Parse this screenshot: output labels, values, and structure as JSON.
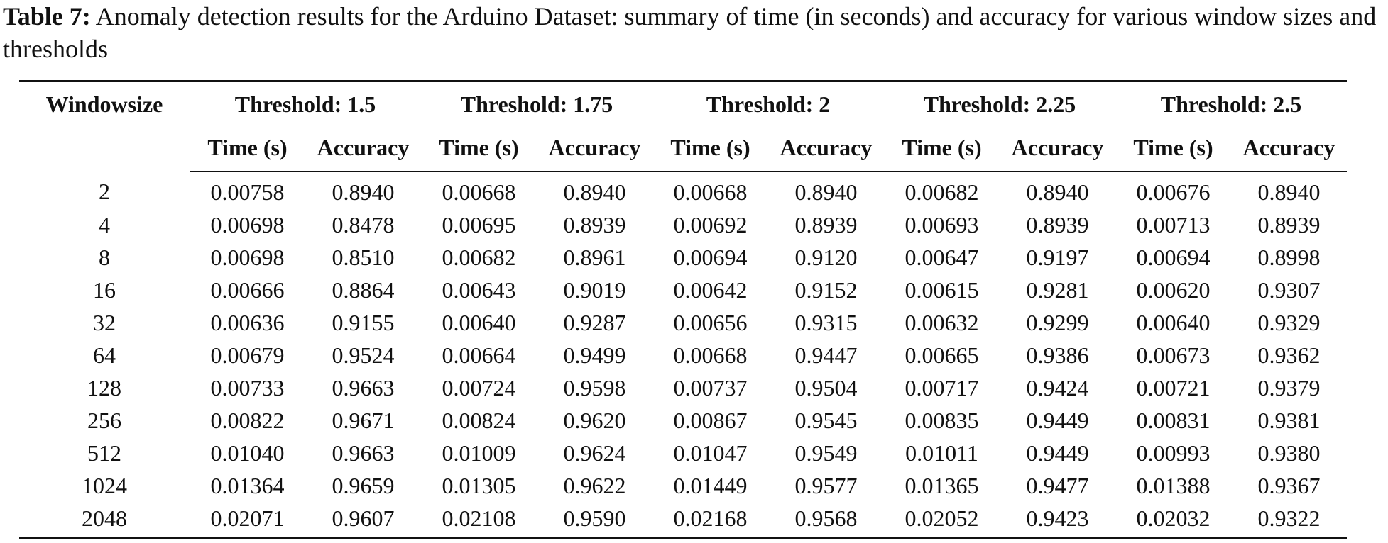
{
  "caption": {
    "label": "Table 7:",
    "text": "Anomaly detection results for the Arduino Dataset: summary of time (in seconds) and accuracy for various window sizes and thresholds"
  },
  "table": {
    "row_header": "Windowsize",
    "groups": [
      {
        "label": "Threshold: 1.5",
        "columns": [
          "Time (s)",
          "Accuracy"
        ]
      },
      {
        "label": "Threshold: 1.75",
        "columns": [
          "Time (s)",
          "Accuracy"
        ]
      },
      {
        "label": "Threshold: 2",
        "columns": [
          "Time (s)",
          "Accuracy"
        ]
      },
      {
        "label": "Threshold: 2.25",
        "columns": [
          "Time (s)",
          "Accuracy"
        ]
      },
      {
        "label": "Threshold: 2.5",
        "columns": [
          "Time (s)",
          "Accuracy"
        ]
      }
    ],
    "rows": [
      [
        "2",
        "0.00758",
        "0.8940",
        "0.00668",
        "0.8940",
        "0.00668",
        "0.8940",
        "0.00682",
        "0.8940",
        "0.00676",
        "0.8940"
      ],
      [
        "4",
        "0.00698",
        "0.8478",
        "0.00695",
        "0.8939",
        "0.00692",
        "0.8939",
        "0.00693",
        "0.8939",
        "0.00713",
        "0.8939"
      ],
      [
        "8",
        "0.00698",
        "0.8510",
        "0.00682",
        "0.8961",
        "0.00694",
        "0.9120",
        "0.00647",
        "0.9197",
        "0.00694",
        "0.8998"
      ],
      [
        "16",
        "0.00666",
        "0.8864",
        "0.00643",
        "0.9019",
        "0.00642",
        "0.9152",
        "0.00615",
        "0.9281",
        "0.00620",
        "0.9307"
      ],
      [
        "32",
        "0.00636",
        "0.9155",
        "0.00640",
        "0.9287",
        "0.00656",
        "0.9315",
        "0.00632",
        "0.9299",
        "0.00640",
        "0.9329"
      ],
      [
        "64",
        "0.00679",
        "0.9524",
        "0.00664",
        "0.9499",
        "0.00668",
        "0.9447",
        "0.00665",
        "0.9386",
        "0.00673",
        "0.9362"
      ],
      [
        "128",
        "0.00733",
        "0.9663",
        "0.00724",
        "0.9598",
        "0.00737",
        "0.9504",
        "0.00717",
        "0.9424",
        "0.00721",
        "0.9379"
      ],
      [
        "256",
        "0.00822",
        "0.9671",
        "0.00824",
        "0.9620",
        "0.00867",
        "0.9545",
        "0.00835",
        "0.9449",
        "0.00831",
        "0.9381"
      ],
      [
        "512",
        "0.01040",
        "0.9663",
        "0.01009",
        "0.9624",
        "0.01047",
        "0.9549",
        "0.01011",
        "0.9449",
        "0.00993",
        "0.9380"
      ],
      [
        "1024",
        "0.01364",
        "0.9659",
        "0.01305",
        "0.9622",
        "0.01449",
        "0.9577",
        "0.01365",
        "0.9477",
        "0.01388",
        "0.9367"
      ],
      [
        "2048",
        "0.02071",
        "0.9607",
        "0.02108",
        "0.9590",
        "0.02168",
        "0.9568",
        "0.02052",
        "0.9423",
        "0.02032",
        "0.9322"
      ]
    ]
  }
}
